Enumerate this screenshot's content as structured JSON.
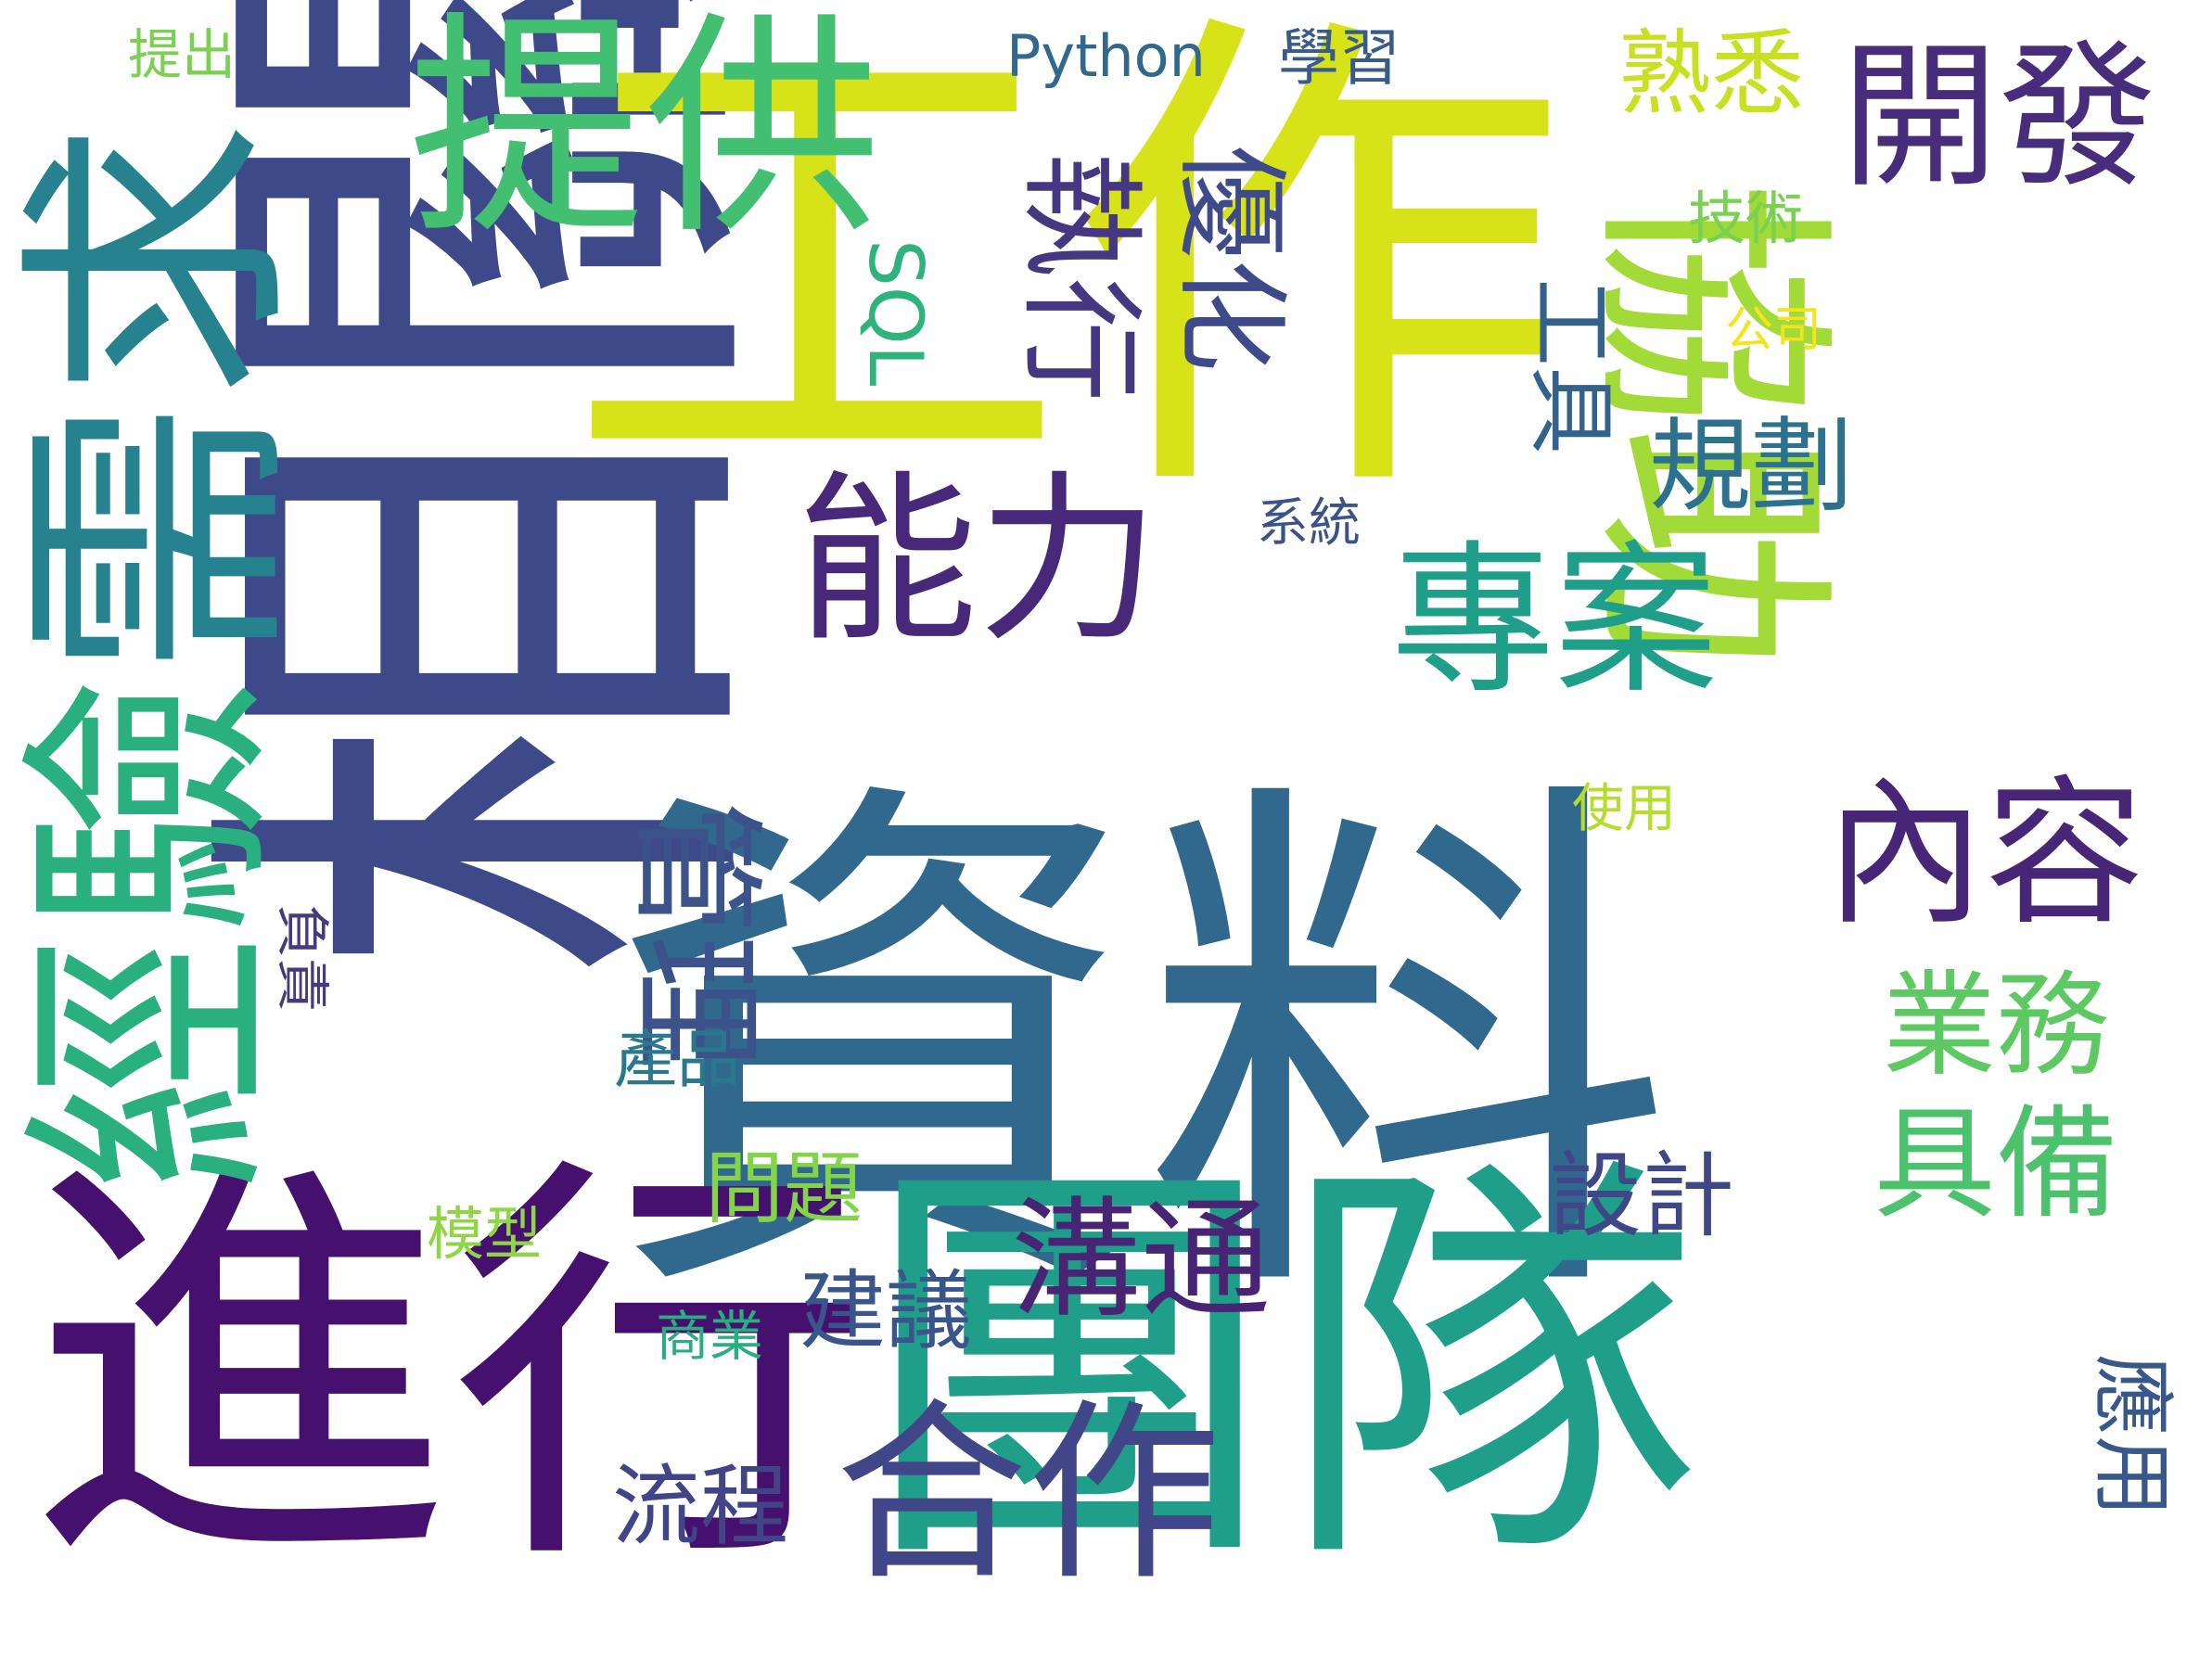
{
  "colors": {
    "background": "#ffffff",
    "palette": "viridis",
    "dark_purple": "#440154",
    "purple": "#482878",
    "indigo": "#3e4989",
    "slate_blue": "#31688e",
    "teal": "#26828e",
    "green_teal": "#1f9e89",
    "green": "#35b779",
    "light_green": "#6ece58",
    "lime": "#b5de2b",
    "yellow": "#fde725"
  },
  "words": [
    {
      "id": "xiangguan",
      "text": "相關",
      "color": "#3e4989"
    },
    {
      "id": "ziliao",
      "text": "資料",
      "color": "#31688e"
    },
    {
      "id": "gongzuo",
      "text": "工作",
      "color": "#d8e219"
    },
    {
      "id": "jinxing",
      "text": "進行",
      "color": "#46106f"
    },
    {
      "id": "tuandui",
      "text": "團隊",
      "color": "#1f9e89"
    },
    {
      "id": "xuqiu",
      "text": "需求",
      "color": "#26828e"
    },
    {
      "id": "jingyan",
      "text": "經驗",
      "color": "#2ab07f"
    },
    {
      "id": "tigong",
      "text": "提供",
      "color": "#43bf71"
    },
    {
      "id": "xiezhu",
      "text": "協助",
      "color": "#a2da37"
    },
    {
      "id": "nengli",
      "text": "能力",
      "color": "#482878"
    },
    {
      "id": "zhuanan",
      "text": "專案",
      "color": "#1f9e89"
    },
    {
      "id": "kaifa",
      "text": "開發",
      "color": "#472d7b"
    },
    {
      "id": "neirong",
      "text": "內容",
      "color": "#482677"
    },
    {
      "id": "hezuo",
      "text": "合作",
      "color": "#404688"
    },
    {
      "id": "goutong",
      "text": "溝通",
      "color": "#482475"
    },
    {
      "id": "guanli",
      "text": "管理",
      "color": "#3b528b"
    },
    {
      "id": "zhixing",
      "text": "執行",
      "color": "#453781"
    },
    {
      "id": "youhua",
      "text": "優化",
      "color": "#3e4a89"
    },
    {
      "id": "gongju",
      "text": "工具",
      "color": "#33638d"
    },
    {
      "id": "guihua",
      "text": "規劃",
      "color": "#2c728e"
    },
    {
      "id": "shuxi",
      "text": "熟悉",
      "color": "#c8e020"
    },
    {
      "id": "yewu",
      "text": "業務",
      "color": "#5ec962"
    },
    {
      "id": "jubei",
      "text": "具備",
      "color": "#4cc26c"
    },
    {
      "id": "sheji",
      "text": "設計",
      "color": "#3f4788"
    },
    {
      "id": "jianyi",
      "text": "建議",
      "color": "#3a548c"
    },
    {
      "id": "liucheng",
      "text": "流程",
      "color": "#414487"
    },
    {
      "id": "sql",
      "text": "SQL",
      "color": "#2eb37c"
    },
    {
      "id": "python",
      "text": "Python",
      "color": "#31688e"
    },
    {
      "id": "xuexi",
      "text": "學習",
      "color": "#375b8d"
    },
    {
      "id": "tichu",
      "text": "提出",
      "color": "#7ad151"
    },
    {
      "id": "jishu",
      "text": "技術",
      "color": "#7ad151"
    },
    {
      "id": "gongsi",
      "text": "公司",
      "color": "#f1e51d"
    },
    {
      "id": "xitong",
      "text": "系統",
      "color": "#3b528b"
    },
    {
      "id": "shiyong",
      "text": "使用",
      "color": "#b5de2b"
    },
    {
      "id": "fuze",
      "text": "負責",
      "color": "#443983"
    },
    {
      "id": "chanpin",
      "text": "產品",
      "color": "#2a788e"
    },
    {
      "id": "wenti",
      "text": "問題",
      "color": "#84d44b"
    },
    {
      "id": "moxing",
      "text": "模型",
      "color": "#8ed645"
    },
    {
      "id": "shangye",
      "text": "商業",
      "color": "#29af7f"
    },
    {
      "id": "yingyong",
      "text": "應用",
      "color": "#38588c"
    }
  ]
}
